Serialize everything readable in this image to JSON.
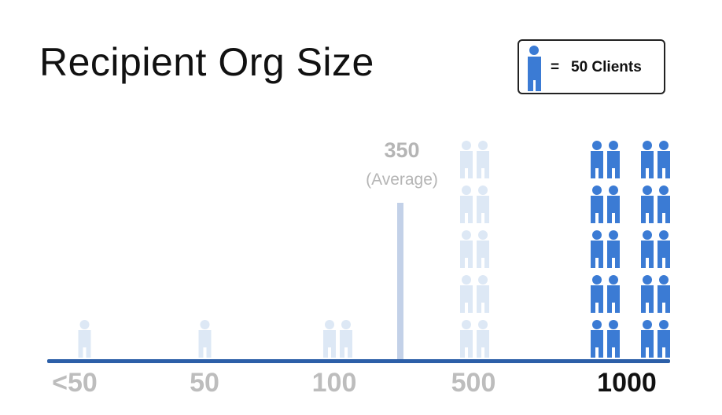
{
  "title": "Recipient Org Size",
  "legend": {
    "equals": "=",
    "label": "50 Clients",
    "icon": "person-icon"
  },
  "colors": {
    "highlight": "#3b7bd4",
    "muted_icon": "#dde8f5",
    "muted_label": "#bdbdbd",
    "axis": "#2c5fa8",
    "average_line": "#c3d1e8",
    "average_text": "#b5b5b5",
    "highlight_label": "#111111"
  },
  "chart_data": {
    "type": "bar",
    "categories": [
      "<50",
      "50",
      "100",
      "500",
      "1000"
    ],
    "values": [
      1,
      1,
      2,
      10,
      20
    ],
    "unit": "50 Clients per icon",
    "highlighted_category": "1000",
    "reference_line": {
      "value": "350",
      "label": "(Average)"
    }
  }
}
